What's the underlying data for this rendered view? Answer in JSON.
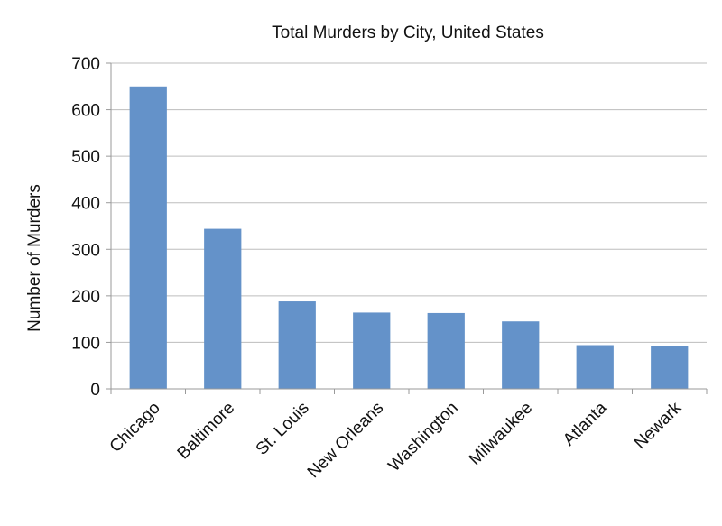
{
  "chart_data": {
    "type": "bar",
    "title": "Total Murders by City, United States",
    "xlabel": "",
    "ylabel": "Number of Murders",
    "categories": [
      "Chicago",
      "Baltimore",
      "St. Louis",
      "New Orleans",
      "Washington",
      "Milwaukee",
      "Atlanta",
      "Newark"
    ],
    "values": [
      650,
      344,
      188,
      164,
      163,
      145,
      94,
      93
    ],
    "ylim": [
      0,
      700
    ],
    "yticks": [
      0,
      100,
      200,
      300,
      400,
      500,
      600,
      700
    ],
    "grid": true,
    "legend": "none",
    "bar_color": "#6492c9"
  }
}
